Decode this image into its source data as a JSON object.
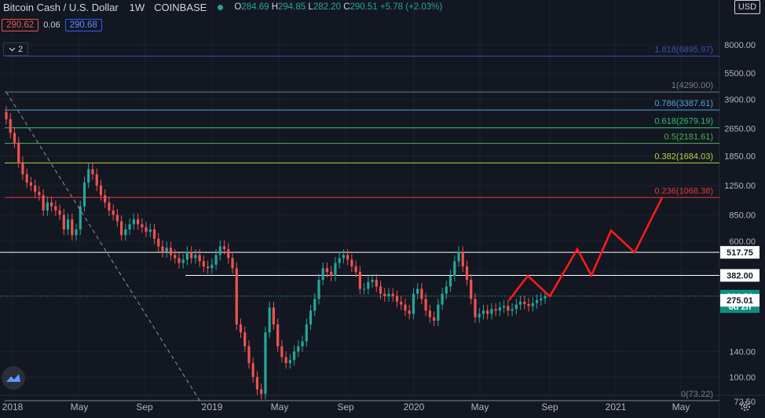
{
  "header": {
    "symbol": "Bitcoin Cash / U.S. Dollar",
    "interval": "1W",
    "exchange": "COINBASE",
    "open_label": "O",
    "open": "284.69",
    "high_label": "H",
    "high": "294.85",
    "low_label": "L",
    "low": "282.20",
    "close_label": "C",
    "close": "290.51",
    "change": "+5.78 (+2.03%)"
  },
  "quote": {
    "bid": "290.62",
    "spread": "0.06",
    "ask": "290.68"
  },
  "indicator_toggle": {
    "count": "2",
    "icon": "chevron-down-icon"
  },
  "currency_button": "USD",
  "colors": {
    "background": "#131722",
    "grid": "#1e222d",
    "up": "#26a69a",
    "down": "#ef5350",
    "projection": "#ff1a1a",
    "trendline": "#9598a1"
  },
  "chart_data": {
    "type": "candlestick",
    "y_scale": "log",
    "ylim": [
      68,
      12500
    ],
    "x_ticks": [
      "2018",
      "May",
      "Sep",
      "2019",
      "May",
      "Sep",
      "2020",
      "May",
      "Sep",
      "2021",
      "May"
    ],
    "y_ticks": [
      "8000.00",
      "5500.00",
      "3900.00",
      "2650.00",
      "1850.00",
      "1250.00",
      "850.00",
      "600.00",
      "400.00",
      "140.00",
      "100.00",
      "72.50"
    ],
    "price_tags": [
      {
        "label": "517.75",
        "value": 517.75,
        "style": "white"
      },
      {
        "label": "382.00",
        "value": 382.0,
        "style": "white"
      },
      {
        "label": "290.51",
        "value": 290.51,
        "style": "green"
      },
      {
        "label": "6d 2h",
        "value": 253,
        "style": "green"
      },
      {
        "label": "275.01",
        "value": 275.01,
        "style": "white"
      }
    ],
    "fib_levels": [
      {
        "label": "1.618(6895.97)",
        "value": 6895.97,
        "color": "#3f51b5"
      },
      {
        "label": "1(4290.00)",
        "value": 4290.0,
        "color": "#787b86"
      },
      {
        "label": "0.786(3387.61)",
        "value": 3387.61,
        "color": "#4fa3d6"
      },
      {
        "label": "0.618(2679.19)",
        "value": 2679.19,
        "color": "#2fbf71"
      },
      {
        "label": "0.5(2181.61)",
        "value": 2181.61,
        "color": "#4caf50"
      },
      {
        "label": "0.382(1684.03)",
        "value": 1684.03,
        "color": "#b7d33b"
      },
      {
        "label": "0.236(1068.38)",
        "value": 1068.38,
        "color": "#e53935"
      },
      {
        "label": "0(73.22)",
        "value": 73.22,
        "color": "#787b86"
      }
    ],
    "horizontal_lines": [
      517.75,
      382.0,
      290.51
    ],
    "trendline": {
      "from": [
        "2018-01",
        4290
      ],
      "to": [
        "2018-12",
        73.22
      ]
    },
    "projection": [
      [
        0,
        275
      ],
      [
        1,
        380
      ],
      [
        2,
        290
      ],
      [
        3,
        540
      ],
      [
        4,
        382
      ],
      [
        5,
        690
      ],
      [
        6,
        517
      ],
      [
        7,
        1068
      ]
    ],
    "series": [
      {
        "name": "BCH/USD",
        "close": [
          3000,
          2500,
          2200,
          1700,
          1450,
          1300,
          1250,
          1150,
          1100,
          900,
          1000,
          950,
          900,
          850,
          700,
          800,
          650,
          700,
          950,
          1300,
          1550,
          1450,
          1250,
          1100,
          1000,
          900,
          850,
          780,
          650,
          700,
          750,
          800,
          750,
          720,
          680,
          700,
          620,
          560,
          520,
          550,
          500,
          480,
          450,
          470,
          520,
          480,
          500,
          460,
          430,
          420,
          440,
          500,
          560,
          540,
          480,
          420,
          200,
          180,
          150,
          120,
          100,
          85,
          80,
          180,
          250,
          200,
          150,
          130,
          120,
          125,
          140,
          150,
          160,
          200,
          240,
          280,
          360,
          420,
          400,
          380,
          450,
          480,
          500,
          470,
          430,
          400,
          320,
          320,
          350,
          360,
          330,
          300,
          290,
          300,
          290,
          270,
          260,
          240,
          230,
          300,
          320,
          280,
          240,
          220,
          210,
          260,
          300,
          330,
          380,
          460,
          520,
          430,
          360,
          280,
          220,
          230,
          240,
          230,
          245,
          240,
          250,
          255,
          240,
          245,
          260,
          270,
          262,
          255,
          265,
          275,
          282,
          290
        ],
        "note": "weekly closes, read approximately"
      }
    ]
  }
}
